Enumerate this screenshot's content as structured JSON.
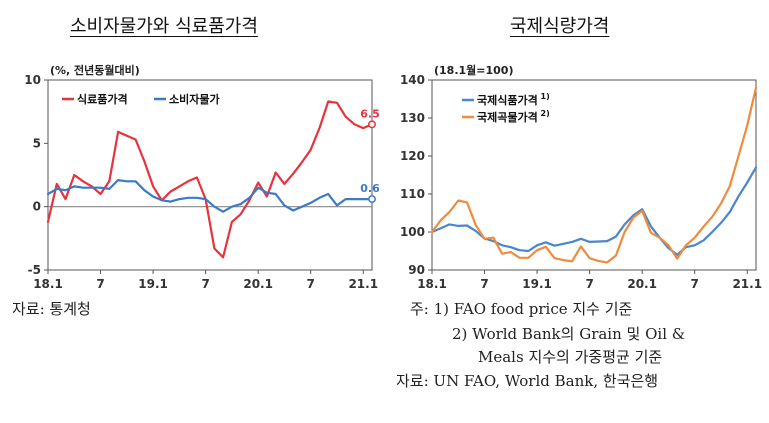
{
  "left": {
    "title": "소비자물가와 식료품가격",
    "source": "자료: 통계청"
  },
  "right": {
    "title": "국제식량가격",
    "notes": [
      "주: 1) FAO food price 지수 기준",
      "2) World Bank의 Grain 및 Oil &",
      "Meals 지수의 가중평균 기준",
      "자료: UN FAO, World Bank, 한국은행"
    ]
  },
  "colors": {
    "food": "#e8323c",
    "cpi": "#3a7bc8",
    "fao": "#4a86cc",
    "wb": "#f08a3c"
  },
  "chart_data": [
    {
      "type": "line",
      "unit_label": "(%, 전년동월대비)",
      "ylim": [
        -5,
        10
      ],
      "yticks": [
        -5,
        0,
        5,
        10
      ],
      "xticks": [
        {
          "i": 0,
          "label": "18.1"
        },
        {
          "i": 6,
          "label": "7"
        },
        {
          "i": 12,
          "label": "19.1"
        },
        {
          "i": 18,
          "label": "7"
        },
        {
          "i": 24,
          "label": "20.1"
        },
        {
          "i": 30,
          "label": "7"
        },
        {
          "i": 36,
          "label": "21.1"
        }
      ],
      "x_count": 38,
      "legend_position": "top-left",
      "series": [
        {
          "name": "식료품가격",
          "color": "#e8323c",
          "values": [
            -1.2,
            1.8,
            0.6,
            2.5,
            2.0,
            1.6,
            1.0,
            2.0,
            5.9,
            5.6,
            5.3,
            3.6,
            1.6,
            0.5,
            1.2,
            1.6,
            2.0,
            2.3,
            0.6,
            -3.3,
            -4.0,
            -1.2,
            -0.6,
            0.5,
            1.9,
            0.8,
            2.7,
            1.8,
            2.6,
            3.5,
            4.5,
            6.2,
            8.3,
            8.2,
            7.1,
            6.5,
            6.2,
            6.5
          ],
          "end_label": "6.5"
        },
        {
          "name": "소비자물가",
          "color": "#3a7bc8",
          "values": [
            1.0,
            1.4,
            1.3,
            1.6,
            1.5,
            1.5,
            1.5,
            1.4,
            2.1,
            2.0,
            2.0,
            1.3,
            0.8,
            0.5,
            0.4,
            0.6,
            0.7,
            0.7,
            0.6,
            0.0,
            -0.4,
            0.0,
            0.2,
            0.7,
            1.5,
            1.1,
            1.0,
            0.1,
            -0.3,
            0.0,
            0.3,
            0.7,
            1.0,
            0.1,
            0.6,
            0.6,
            0.6,
            0.6
          ],
          "end_label": "0.6"
        }
      ]
    },
    {
      "type": "line",
      "unit_label": "(18.1월=100)",
      "ylim": [
        90,
        140
      ],
      "yticks": [
        90,
        100,
        110,
        120,
        130,
        140
      ],
      "xticks": [
        {
          "i": 0,
          "label": "18.1"
        },
        {
          "i": 6,
          "label": "7"
        },
        {
          "i": 12,
          "label": "19.1"
        },
        {
          "i": 18,
          "label": "7"
        },
        {
          "i": 24,
          "label": "20.1"
        },
        {
          "i": 30,
          "label": "7"
        },
        {
          "i": 36,
          "label": "21.1"
        }
      ],
      "x_count": 38,
      "legend_position": "top-left",
      "series": [
        {
          "name": "국제식품가격",
          "sup": "1)",
          "color": "#4a86cc",
          "values": [
            100.0,
            101.0,
            102.0,
            101.6,
            101.7,
            100.3,
            98.3,
            97.6,
            96.5,
            96.0,
            95.2,
            95.0,
            96.5,
            97.3,
            96.4,
            96.9,
            97.4,
            98.2,
            97.4,
            97.5,
            97.6,
            98.8,
            102.0,
            104.4,
            106.0,
            101.5,
            98.5,
            95.8,
            94.0,
            96.0,
            96.5,
            97.8,
            100.0,
            102.4,
            105.2,
            109.4,
            113.0,
            117.0
          ],
          "end_label": ""
        },
        {
          "name": "국제곡물가격",
          "sup": "2)",
          "color": "#f08a3c",
          "values": [
            100.0,
            103.1,
            105.3,
            108.3,
            107.8,
            101.8,
            98.2,
            98.5,
            94.3,
            94.7,
            93.2,
            93.2,
            95.2,
            96.1,
            93.1,
            92.6,
            92.3,
            96.2,
            93.1,
            92.4,
            92.0,
            93.8,
            100.0,
            103.8,
            105.6,
            99.8,
            98.5,
            96.5,
            93.0,
            96.5,
            98.5,
            101.4,
            104.0,
            107.5,
            112.0,
            120.0,
            128.0,
            138.0
          ],
          "end_label": ""
        }
      ]
    }
  ]
}
